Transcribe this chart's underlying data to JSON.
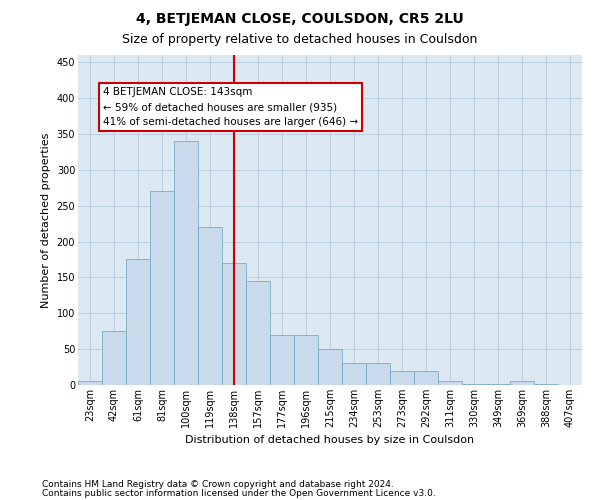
{
  "title": "4, BETJEMAN CLOSE, COULSDON, CR5 2LU",
  "subtitle": "Size of property relative to detached houses in Coulsdon",
  "xlabel": "Distribution of detached houses by size in Coulsdon",
  "ylabel": "Number of detached properties",
  "bar_labels": [
    "23sqm",
    "42sqm",
    "61sqm",
    "81sqm",
    "100sqm",
    "119sqm",
    "138sqm",
    "157sqm",
    "177sqm",
    "196sqm",
    "215sqm",
    "234sqm",
    "253sqm",
    "273sqm",
    "292sqm",
    "311sqm",
    "330sqm",
    "349sqm",
    "369sqm",
    "388sqm",
    "407sqm"
  ],
  "bar_heights": [
    5,
    75,
    175,
    270,
    340,
    220,
    170,
    145,
    70,
    70,
    50,
    30,
    30,
    20,
    20,
    5,
    2,
    2,
    5,
    2,
    0
  ],
  "bar_color": "#c9daea",
  "bar_edge_color": "#7aaac8",
  "property_line_x": 6.0,
  "property_label": "4 BETJEMAN CLOSE: 143sqm",
  "annotation_line1": "← 59% of detached houses are smaller (935)",
  "annotation_line2": "41% of semi-detached houses are larger (646) →",
  "annotation_box_color": "#ffffff",
  "annotation_box_edge_color": "#cc0000",
  "vline_color": "#cc0000",
  "ylim": [
    0,
    460
  ],
  "yticks": [
    0,
    50,
    100,
    150,
    200,
    250,
    300,
    350,
    400,
    450
  ],
  "footer_line1": "Contains HM Land Registry data © Crown copyright and database right 2024.",
  "footer_line2": "Contains public sector information licensed under the Open Government Licence v3.0.",
  "background_color": "#ffffff",
  "plot_bg_color": "#dce8f2",
  "grid_color": "#adc5d8",
  "title_fontsize": 10,
  "subtitle_fontsize": 9,
  "axis_label_fontsize": 8,
  "tick_fontsize": 7,
  "annotation_fontsize": 7.5,
  "footer_fontsize": 6.5
}
